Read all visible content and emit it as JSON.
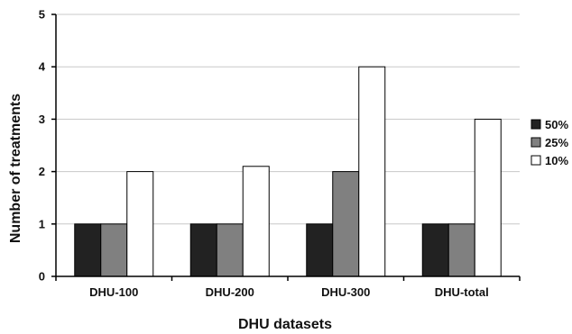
{
  "chart_data": {
    "type": "bar",
    "title": "",
    "xlabel": "DHU datasets",
    "ylabel": "Number of treatments",
    "categories": [
      "DHU-100",
      "DHU-200",
      "DHU-300",
      "DHU-total"
    ],
    "series": [
      {
        "name": "50%",
        "values": [
          1,
          1,
          1,
          1
        ],
        "color": "#222222"
      },
      {
        "name": "25%",
        "values": [
          1,
          1,
          2,
          1
        ],
        "color": "#808080"
      },
      {
        "name": "10%",
        "values": [
          2,
          2.1,
          4,
          3
        ],
        "color": "#ffffff"
      }
    ],
    "ylim": [
      0,
      5
    ],
    "yticks": [
      0,
      1,
      2,
      3,
      4,
      5
    ],
    "grid": true,
    "legend_position": "right"
  }
}
